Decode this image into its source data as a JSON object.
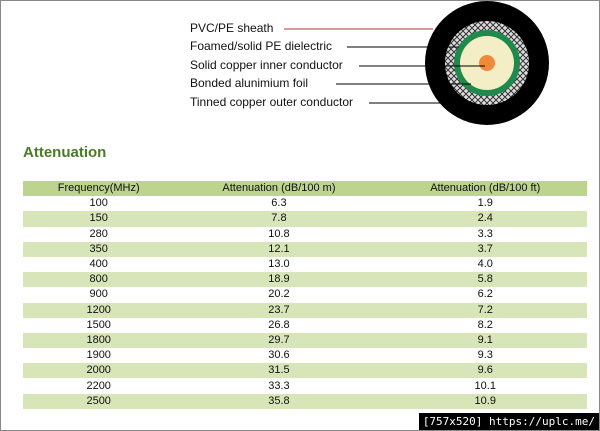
{
  "diagram": {
    "labels": [
      "PVC/PE sheath",
      "Foamed/solid PE dielectric",
      "Solid copper inner conductor",
      "Bonded alunimium foil",
      "Tinned copper outer conductor"
    ]
  },
  "section_title": "Attenuation",
  "table": {
    "header": [
      "Frequency(MHz)",
      "Attenuation (dB/100 m)",
      "Attenuation (dB/100 ft)"
    ],
    "rows": [
      [
        "100",
        "6.3",
        "1.9"
      ],
      [
        "150",
        "7.8",
        "2.4"
      ],
      [
        "280",
        "10.8",
        "3.3"
      ],
      [
        "350",
        "12.1",
        "3.7"
      ],
      [
        "400",
        "13.0",
        "4.0"
      ],
      [
        "800",
        "18.9",
        "5.8"
      ],
      [
        "900",
        "20.2",
        "6.2"
      ],
      [
        "1200",
        "23.7",
        "7.2"
      ],
      [
        "1500",
        "26.8",
        "8.2"
      ],
      [
        "1800",
        "29.7",
        "9.1"
      ],
      [
        "1900",
        "30.6",
        "9.3"
      ],
      [
        "2000",
        "31.5",
        "9.6"
      ],
      [
        "2200",
        "33.3",
        "10.1"
      ],
      [
        "2500",
        "35.8",
        "10.9"
      ]
    ]
  },
  "credit": "[757x520] https://uplc.me/"
}
